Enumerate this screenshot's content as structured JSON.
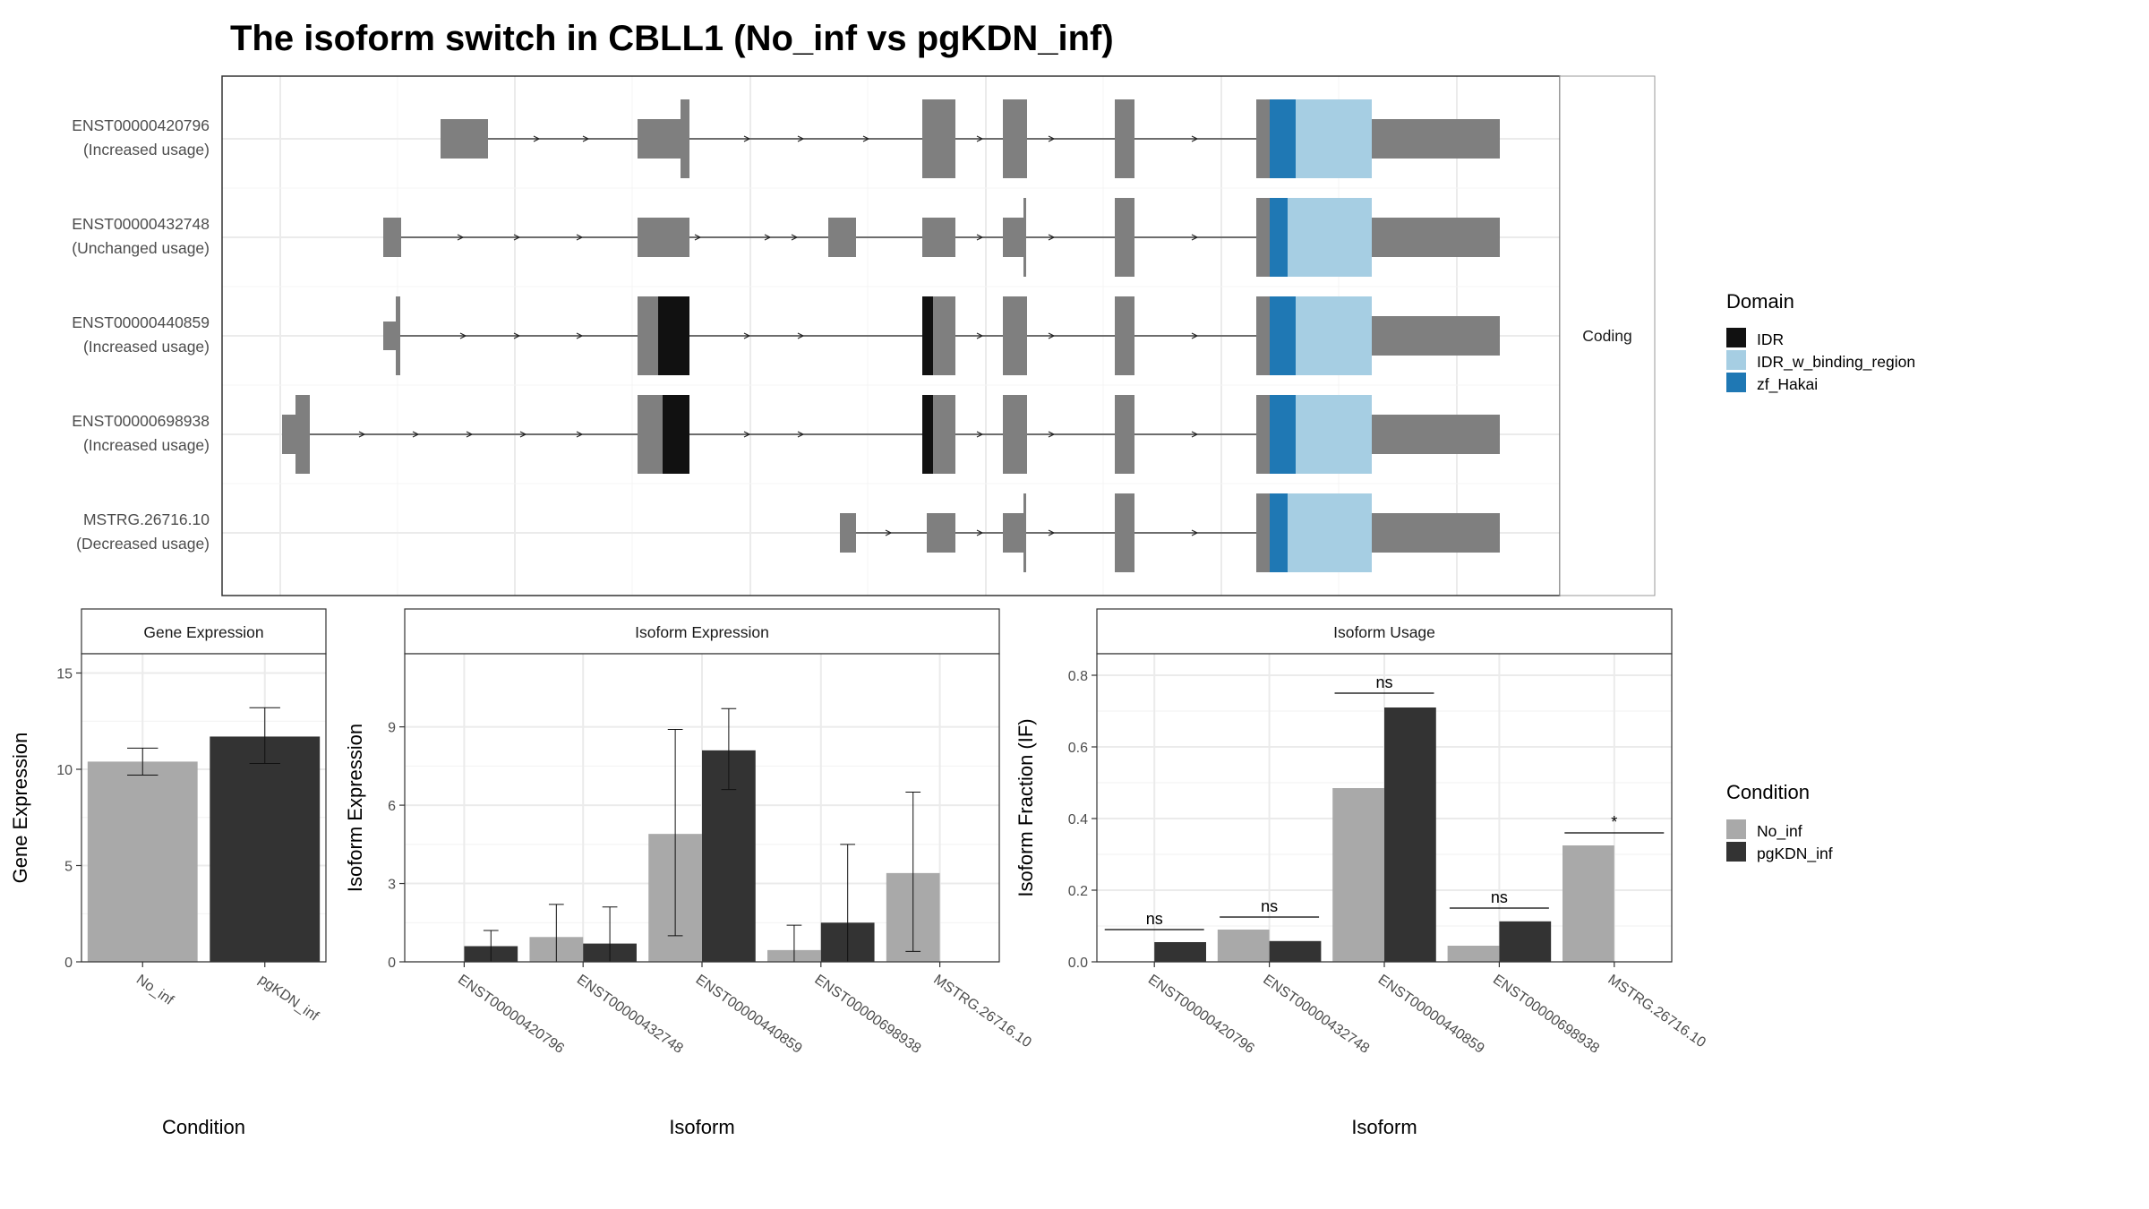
{
  "title": "The isoform switch in CBLL1 (No_inf vs pgKDN_inf)",
  "colors": {
    "IDR": "#111111",
    "IDR_w_binding_region": "#a6cee3",
    "zf_Hakai": "#1f78b4",
    "exon": "#7f7f7f",
    "No_inf": "#a9a9a9",
    "pgKDN_inf": "#333333"
  },
  "structure": {
    "facet_label": "Coding",
    "transcripts": [
      {
        "id": "ENST00000420796",
        "status": "(Increased usage)"
      },
      {
        "id": "ENST00000432748",
        "status": "(Unchanged usage)"
      },
      {
        "id": "ENST00000440859",
        "status": "(Increased usage)"
      },
      {
        "id": "ENST00000698938",
        "status": "(Increased usage)"
      },
      {
        "id": "MSTRG.26716.10",
        "status": "(Decreased usage)"
      }
    ]
  },
  "legend_domain": {
    "title": "Domain",
    "items": [
      "IDR",
      "IDR_w_binding_region",
      "zf_Hakai"
    ]
  },
  "legend_condition": {
    "title": "Condition",
    "items": [
      "No_inf",
      "pgKDN_inf"
    ]
  },
  "chart_data": [
    {
      "type": "bar",
      "panel": "Gene Expression",
      "categories": [
        "No_inf",
        "pgKDN_inf"
      ],
      "values": [
        10.4,
        11.7
      ],
      "error_low": [
        9.7,
        10.3
      ],
      "error_high": [
        11.1,
        13.2
      ],
      "ylabel": "Gene Expression",
      "xlabel": "Condition",
      "ylim": [
        0,
        16
      ],
      "yticks": [
        0,
        5,
        10,
        15
      ]
    },
    {
      "type": "bar",
      "panel": "Isoform Expression",
      "categories": [
        "ENST00000420796",
        "ENST00000432748",
        "ENST00000440859",
        "ENST00000698938",
        "MSTRG.26716.10"
      ],
      "series": [
        {
          "name": "No_inf",
          "values": [
            0.0,
            0.95,
            4.9,
            0.45,
            3.4
          ],
          "error_low": [
            0.0,
            0.0,
            1.0,
            0.0,
            0.4
          ],
          "error_high": [
            0.0,
            2.2,
            8.9,
            1.4,
            6.5
          ]
        },
        {
          "name": "pgKDN_inf",
          "values": [
            0.6,
            0.7,
            8.1,
            1.5,
            0.0
          ],
          "error_low": [
            0.0,
            0.0,
            6.6,
            0.0,
            0.0
          ],
          "error_high": [
            1.2,
            2.1,
            9.7,
            4.5,
            0.0
          ]
        }
      ],
      "ylabel": "Isoform Expression",
      "xlabel": "Isoform",
      "ylim": [
        0,
        11.8
      ],
      "yticks": [
        0,
        3,
        6,
        9
      ]
    },
    {
      "type": "bar",
      "panel": "Isoform Usage",
      "categories": [
        "ENST00000420796",
        "ENST00000432748",
        "ENST00000440859",
        "ENST00000698938",
        "MSTRG.26716.10"
      ],
      "series": [
        {
          "name": "No_inf",
          "values": [
            0.0,
            0.09,
            0.485,
            0.045,
            0.325
          ]
        },
        {
          "name": "pgKDN_inf",
          "values": [
            0.055,
            0.058,
            0.71,
            0.113,
            0.0
          ]
        }
      ],
      "significance": [
        "ns",
        "ns",
        "ns",
        "ns",
        "*"
      ],
      "significance_y": [
        0.09,
        0.125,
        0.75,
        0.15,
        0.36
      ],
      "ylabel": "Isoform Fraction (IF)",
      "xlabel": "Isoform",
      "ylim": [
        0,
        0.86
      ],
      "yticks": [
        0.0,
        0.2,
        0.4,
        0.6,
        0.8
      ],
      "ytick_labels": [
        "0.0",
        "0.2",
        "0.4",
        "0.6",
        "0.8"
      ]
    }
  ]
}
